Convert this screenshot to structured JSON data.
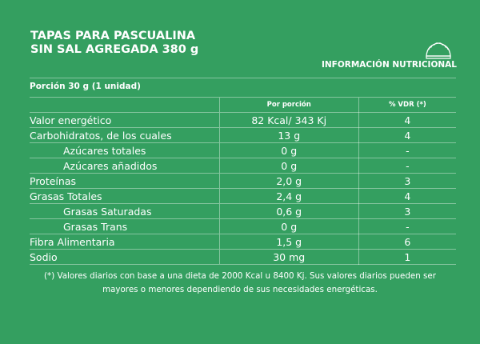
{
  "header": {
    "title_line1": "TAPAS PARA PASCUALINA",
    "title_line2": "SIN SAL AGREGADA 380 g",
    "info_label": "INFORMACIÓN NUTRICIONAL",
    "icon": "empanada-icon"
  },
  "portion": "Porción 30 g (1 unidad)",
  "table": {
    "headers": [
      "",
      "Por porción",
      "% VDR (*)"
    ],
    "rows": [
      {
        "name": "Valor energético",
        "value": "82 Kcal/ 343 Kj",
        "vdr": "4",
        "sub": false
      },
      {
        "name": "Carbohidratos, de los cuales",
        "value": "13 g",
        "vdr": "4",
        "sub": false
      },
      {
        "name": "Azúcares totales",
        "value": "0 g",
        "vdr": "-",
        "sub": true
      },
      {
        "name": "Azúcares añadidos",
        "value": "0 g",
        "vdr": "-",
        "sub": true
      },
      {
        "name": "Proteínas",
        "value": "2,0 g",
        "vdr": "3",
        "sub": false
      },
      {
        "name": "Grasas Totales",
        "value": "2,4 g",
        "vdr": "4",
        "sub": false
      },
      {
        "name": "Grasas Saturadas",
        "value": "0,6 g",
        "vdr": "3",
        "sub": true
      },
      {
        "name": "Grasas Trans",
        "value": "0 g",
        "vdr": "-",
        "sub": true
      },
      {
        "name": "Fibra Alimentaria",
        "value": "1,5 g",
        "vdr": "6",
        "sub": false
      },
      {
        "name": "Sodio",
        "value": "30 mg",
        "vdr": "1",
        "sub": false
      }
    ]
  },
  "footnote_line1": "(*) Valores diarios con base a una dieta de 2000 Kcal u 8400 Kj. Sus valores diarios pueden ser",
  "footnote_line2": "mayores o menores dependiendo de sus necesidades energéticas."
}
